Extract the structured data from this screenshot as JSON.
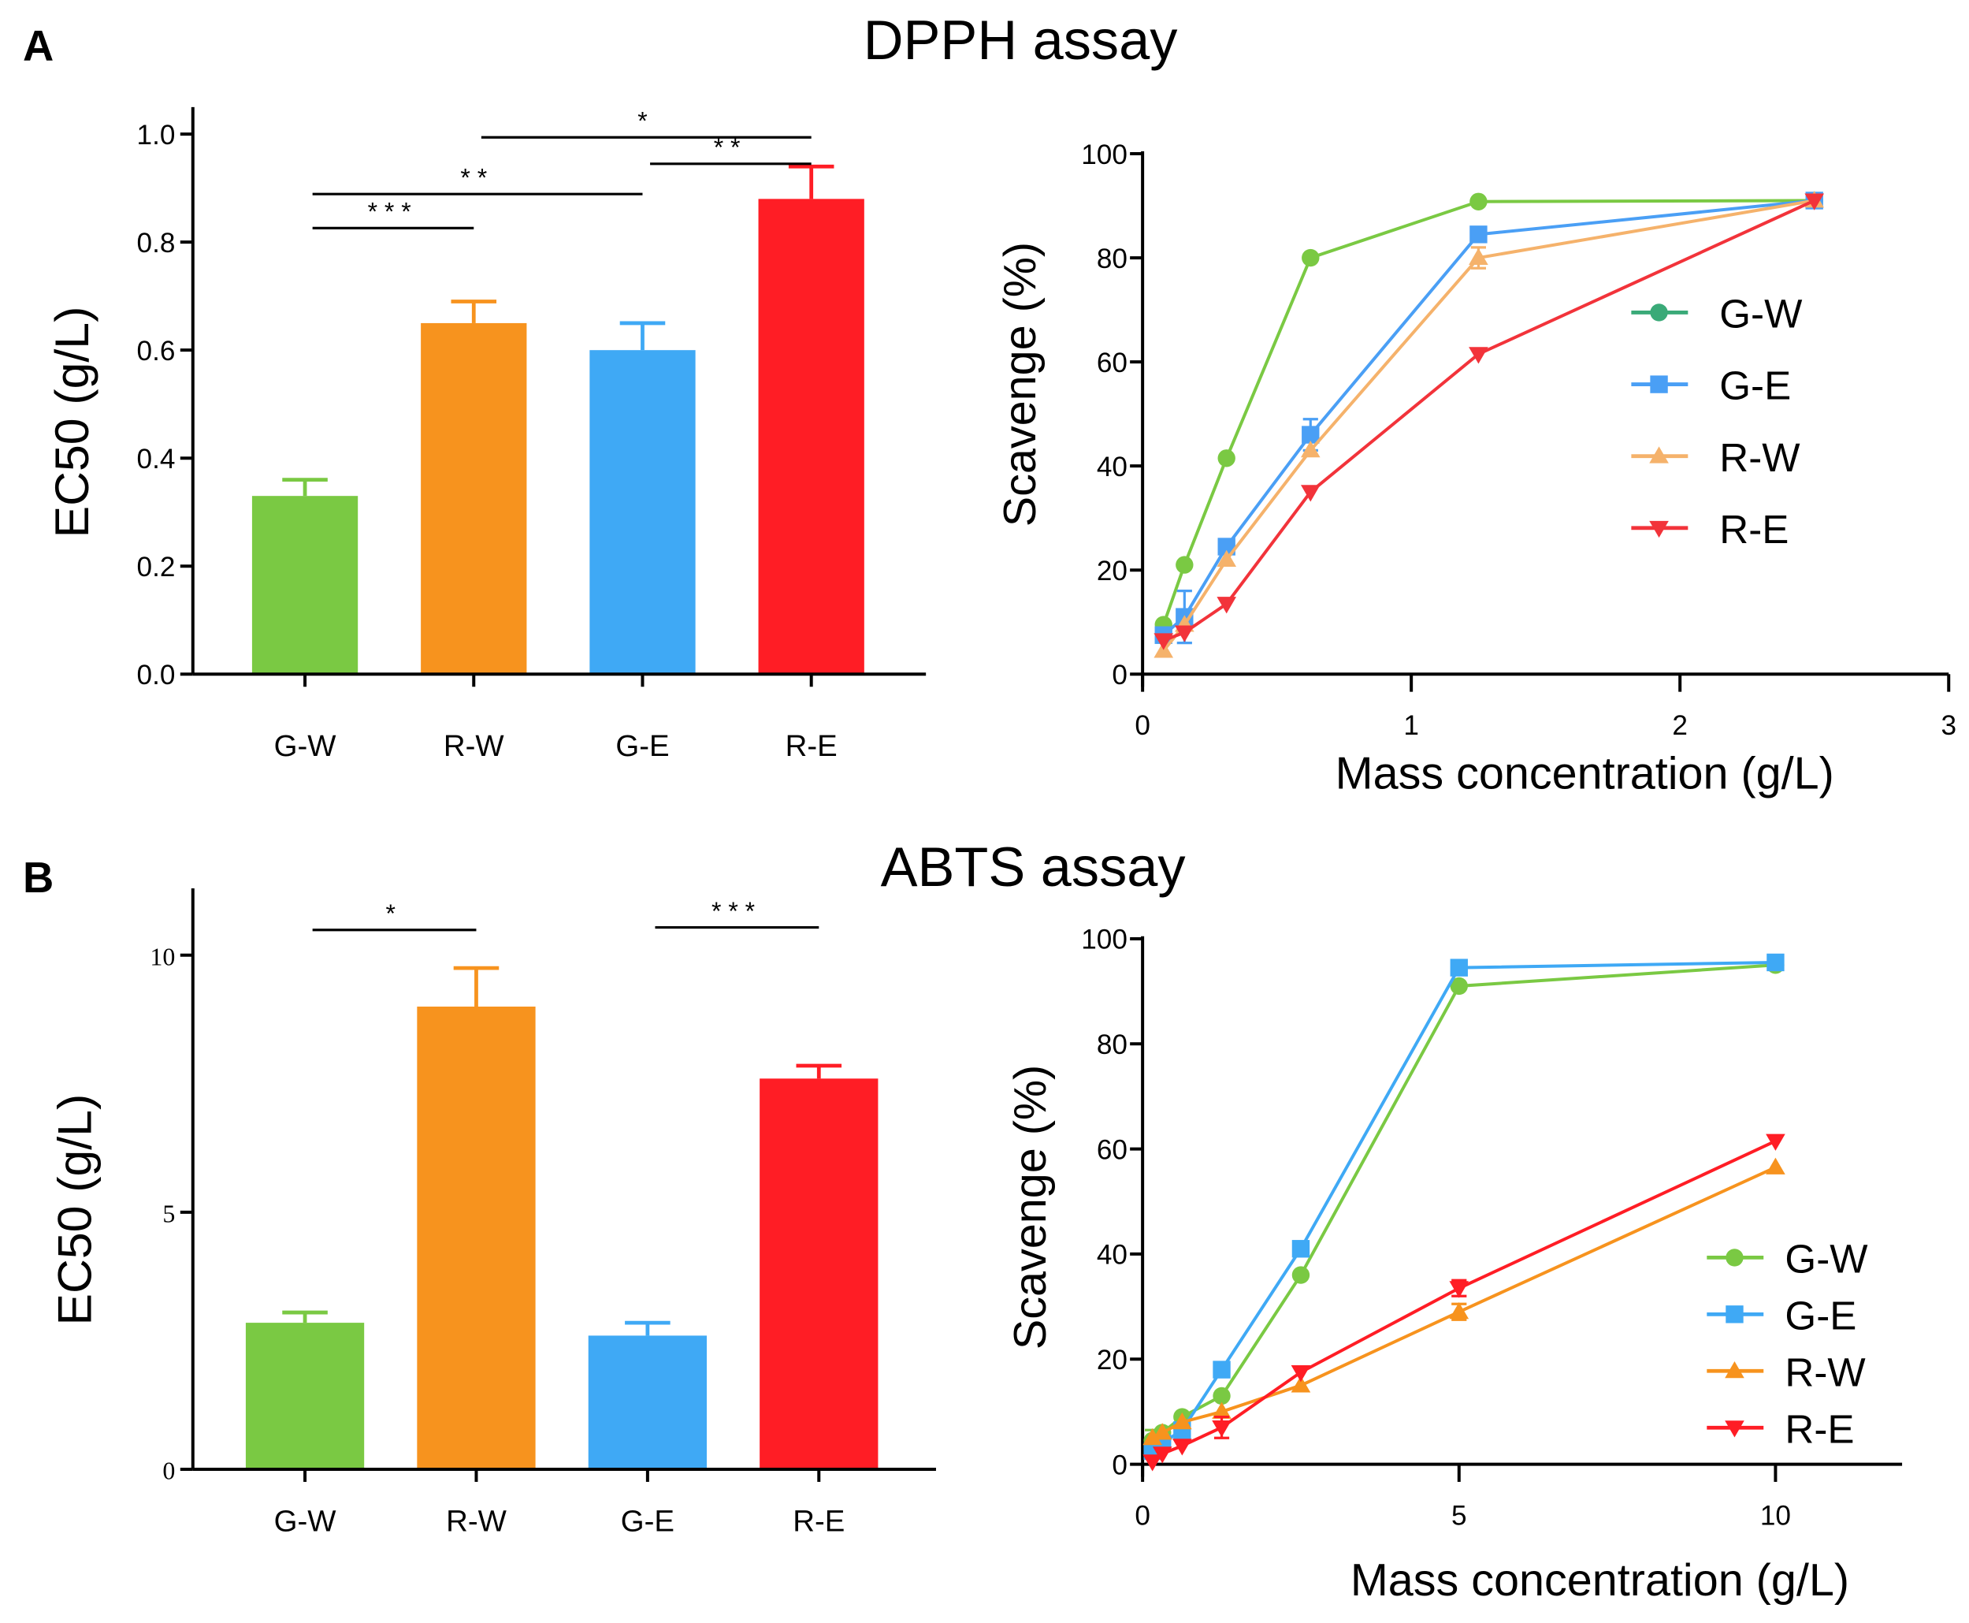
{
  "panels": {
    "a_label": "A",
    "b_label": "B",
    "a_title": "DPPH assay",
    "b_title": "ABTS assay"
  },
  "chart_data": [
    {
      "id": "dpph-bar",
      "type": "bar",
      "title": "DPPH assay",
      "categories": [
        "G-W",
        "R-W",
        "G-E",
        "R-E"
      ],
      "values": [
        0.33,
        0.65,
        0.6,
        0.88
      ],
      "errors": [
        0.03,
        0.04,
        0.05,
        0.06
      ],
      "colors": [
        "#7ac943",
        "#f7931e",
        "#3fa9f5",
        "#ff1d25"
      ],
      "ylabel": "EC50 (g/L)",
      "ylim": [
        0,
        1.05
      ],
      "yticks": [
        0,
        0.2,
        0.4,
        0.6,
        0.8,
        1.0
      ],
      "ytick_labels": [
        "0.0",
        "0.2",
        "0.4",
        "0.6",
        "0.8",
        "1.0"
      ],
      "significance": [
        {
          "from": 0,
          "to": 1,
          "label": "* * *"
        },
        {
          "from": 0,
          "to": 2,
          "label": "* *"
        },
        {
          "from": 1,
          "to": 3,
          "label": "*"
        },
        {
          "from": 2,
          "to": 3,
          "label": "* *"
        }
      ]
    },
    {
      "id": "dpph-line",
      "type": "line",
      "xlabel": "Mass concentration (g/L)",
      "ylabel": "Scavenge (%)",
      "xlim": [
        0,
        3
      ],
      "ylim": [
        0,
        100
      ],
      "xticks": [
        0,
        1,
        2,
        3
      ],
      "yticks": [
        0,
        20,
        40,
        60,
        80,
        100
      ],
      "x": [
        0.078,
        0.156,
        0.3125,
        0.625,
        1.25,
        2.5
      ],
      "legend": "right",
      "series": [
        {
          "name": "G-W",
          "marker": "circle",
          "color": "#7ac943",
          "legend_color": "#3aaa78",
          "values": [
            9.5,
            21,
            41.5,
            80,
            90.8,
            91
          ],
          "errors": [
            0,
            0,
            0,
            0,
            0,
            0
          ]
        },
        {
          "name": "G-E",
          "marker": "square",
          "color": "#4a9ff5",
          "legend_color": "#4a9ff5",
          "values": [
            7.5,
            11,
            24.5,
            46,
            84.5,
            91
          ],
          "errors": [
            0,
            5,
            0,
            3,
            0,
            0
          ]
        },
        {
          "name": "R-W",
          "marker": "triangle-up",
          "color": "#f5b26b",
          "legend_color": "#f5b26b",
          "values": [
            4.5,
            9.5,
            22,
            43,
            80,
            91
          ],
          "errors": [
            0,
            0,
            0,
            0,
            2,
            0
          ]
        },
        {
          "name": "R-E",
          "marker": "triangle-down",
          "color": "#f2333a",
          "legend_color": "#f2333a",
          "values": [
            6.5,
            8,
            13.5,
            35,
            61.5,
            91
          ],
          "errors": [
            0,
            0,
            0,
            0,
            0,
            0
          ]
        }
      ]
    },
    {
      "id": "abts-bar",
      "type": "bar",
      "title": "ABTS assay",
      "categories": [
        "G-W",
        "R-W",
        "G-E",
        "R-E"
      ],
      "values": [
        2.85,
        9.0,
        2.6,
        7.6
      ],
      "errors": [
        0.2,
        0.75,
        0.25,
        0.25
      ],
      "colors": [
        "#7ac943",
        "#f7931e",
        "#3fa9f5",
        "#ff1d25"
      ],
      "ylabel": "EC50 (g/L)",
      "ylim": [
        0,
        11.3
      ],
      "yticks": [
        0,
        5,
        10
      ],
      "ytick_labels": [
        "0",
        "5",
        "10"
      ],
      "significance": [
        {
          "from": 0,
          "to": 1,
          "label": "*"
        },
        {
          "from": 2,
          "to": 3,
          "label": "* * *"
        }
      ]
    },
    {
      "id": "abts-line",
      "type": "line",
      "xlabel": "Mass concentration (g/L)",
      "ylabel": "Scavenge (%)",
      "xlim": [
        0,
        12
      ],
      "ylim": [
        0,
        100
      ],
      "xticks": [
        0,
        5,
        10
      ],
      "yticks": [
        0,
        20,
        40,
        60,
        80,
        100
      ],
      "x": [
        0.156,
        0.3125,
        0.625,
        1.25,
        2.5,
        5,
        10
      ],
      "legend": "bottom-right",
      "series": [
        {
          "name": "G-W",
          "marker": "circle",
          "color": "#7ac943",
          "legend_color": "#7ac943",
          "values": [
            4.5,
            6,
            9,
            13,
            36,
            91,
            95
          ],
          "errors": [
            2,
            0,
            0,
            0,
            0,
            0,
            0
          ]
        },
        {
          "name": "G-E",
          "marker": "square",
          "color": "#3fa9f5",
          "legend_color": "#3fa9f5",
          "values": [
            2.5,
            4,
            6.5,
            18,
            41,
            94.5,
            95.5
          ],
          "errors": [
            0,
            0,
            0,
            0,
            0,
            0,
            0
          ]
        },
        {
          "name": "R-W",
          "marker": "triangle-up",
          "color": "#f7931e",
          "legend_color": "#f7931e",
          "values": [
            5,
            6,
            8,
            10,
            15,
            29,
            56.5
          ],
          "errors": [
            0,
            0,
            0,
            0,
            0,
            1.5,
            0
          ]
        },
        {
          "name": "R-E",
          "marker": "triangle-down",
          "color": "#ff1d25",
          "legend_color": "#ff1d25",
          "values": [
            0.5,
            2,
            3.5,
            7,
            17.5,
            33.5,
            61.5
          ],
          "errors": [
            0,
            0,
            0,
            2,
            0,
            1.5,
            0
          ]
        }
      ]
    }
  ]
}
